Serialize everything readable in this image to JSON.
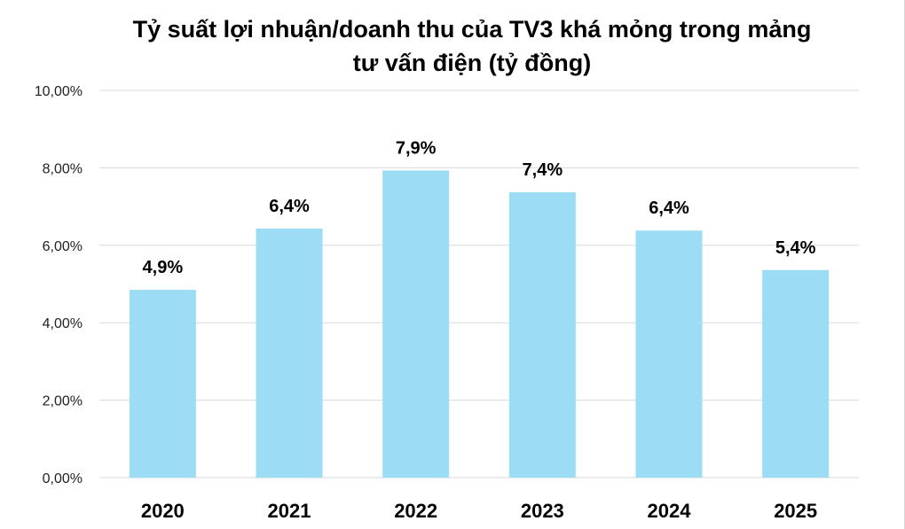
{
  "chart_data": {
    "type": "bar",
    "title_lines": [
      "Tỷ suất lợi nhuận/doanh thu của TV3 khá mỏng trong mảng",
      "tư vấn điện (tỷ đồng)"
    ],
    "categories": [
      "2020",
      "2021",
      "2022",
      "2023",
      "2024",
      "2025"
    ],
    "values": [
      4.85,
      6.43,
      7.93,
      7.37,
      6.38,
      5.36
    ],
    "data_labels": [
      "4,9%",
      "6,4%",
      "7,9%",
      "7,4%",
      "6,4%",
      "5,4%"
    ],
    "y_ticks": [
      0,
      2,
      4,
      6,
      8,
      10
    ],
    "y_tick_labels": [
      "0,00%",
      "2,00%",
      "4,00%",
      "6,00%",
      "8,00%",
      "10,00%"
    ],
    "ylim": [
      0,
      10
    ],
    "xlabel": "",
    "ylabel": "",
    "grid": true,
    "legend": "none",
    "bar_color": "#9ddcf5",
    "gridline_color": "#d9d9d9"
  }
}
